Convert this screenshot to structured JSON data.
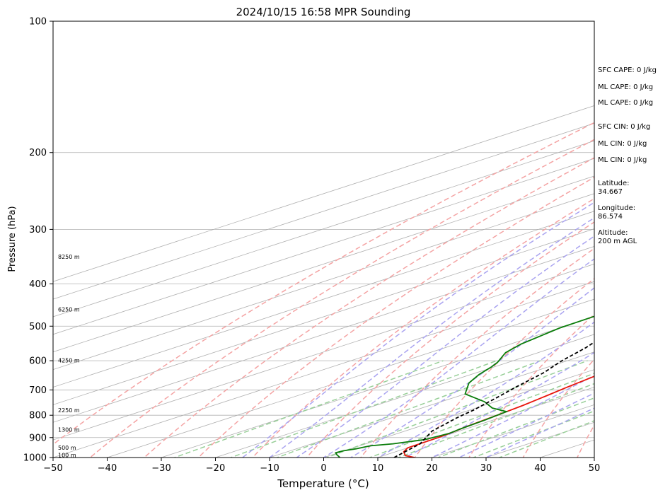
{
  "chart_data": {
    "type": "line",
    "subtype": "skew-t log-p",
    "title": "2024/10/15 16:58 MPR Sounding",
    "xlabel": "Temperature (°C)",
    "ylabel": "Pressure (hPa)",
    "xlim": [
      -50,
      50
    ],
    "ylim": [
      1000,
      100
    ],
    "y_scale": "log",
    "x_ticks": [
      -50,
      -40,
      -30,
      -20,
      -10,
      0,
      10,
      20,
      30,
      40,
      50
    ],
    "y_ticks": [
      100,
      200,
      300,
      400,
      500,
      600,
      700,
      800,
      900,
      1000
    ],
    "grid": "horizontal at pressure ticks",
    "skew_isotherms_degC": [
      -150,
      -140,
      -130,
      -120,
      -110,
      -100,
      -90,
      -80,
      -70,
      -60,
      -50,
      -40,
      -30,
      -20,
      -10,
      0,
      10,
      20,
      30,
      40,
      50
    ],
    "dry_adiabats_theta_K": [
      220,
      230,
      240,
      250,
      260,
      270,
      280,
      290,
      300,
      310,
      320,
      330,
      340,
      350,
      360,
      370,
      380,
      390,
      400,
      410,
      420,
      430,
      440,
      450
    ],
    "moist_adiabats_start_degC": [
      -15,
      -10,
      -5,
      0,
      5,
      10,
      15,
      20,
      25,
      30
    ],
    "mixing_ratio_lines_gkg": [
      0.4,
      1,
      2,
      4,
      7,
      10,
      16,
      24,
      32
    ],
    "series": [
      {
        "name": "",
        "role": "temperature",
        "color": "#e8160c",
        "points": [
          [
            16.8,
            1000
          ],
          [
            14,
            990
          ],
          [
            11.5,
            970
          ],
          [
            10,
            950
          ],
          [
            9.8,
            900
          ],
          [
            9.3,
            870
          ],
          [
            8.8,
            850
          ],
          [
            8,
            800
          ],
          [
            7.2,
            760
          ],
          [
            6,
            720
          ],
          [
            5,
            690
          ],
          [
            3.8,
            650
          ],
          [
            2,
            600
          ],
          [
            0,
            560
          ],
          [
            -1.2,
            530
          ],
          [
            -3,
            500
          ],
          [
            -6.5,
            450
          ],
          [
            -8.5,
            425
          ],
          [
            -11,
            390
          ],
          [
            -14,
            360
          ],
          [
            -17,
            330
          ],
          [
            -19,
            310
          ],
          [
            -21,
            285
          ],
          [
            -22.5,
            270
          ]
        ]
      },
      {
        "name": "",
        "role": "dewpoint",
        "color": "#0a7d0a",
        "points": [
          [
            3,
            1000
          ],
          [
            0.8,
            985
          ],
          [
            -0.5,
            975
          ],
          [
            -0.2,
            965
          ],
          [
            1,
            955
          ],
          [
            2,
            940
          ],
          [
            5,
            930
          ],
          [
            8.5,
            910
          ],
          [
            9.5,
            880
          ],
          [
            9,
            860
          ],
          [
            8.5,
            820
          ],
          [
            7.7,
            785
          ],
          [
            3,
            770
          ],
          [
            -2,
            745
          ],
          [
            -10,
            715
          ],
          [
            -15.5,
            675
          ],
          [
            -17,
            660
          ],
          [
            -18.5,
            645
          ],
          [
            -20.5,
            620
          ],
          [
            -22,
            605
          ],
          [
            -26,
            575
          ],
          [
            -28,
            550
          ],
          [
            -30,
            505
          ],
          [
            -30.2,
            480
          ],
          [
            -30.5,
            455
          ],
          [
            -31,
            440
          ],
          [
            -32,
            430
          ],
          [
            -32,
            415
          ],
          [
            -31.2,
            405
          ],
          [
            -33,
            395
          ],
          [
            -33.3,
            385
          ],
          [
            -33.6,
            370
          ],
          [
            -34,
            360
          ],
          [
            -36,
            350
          ],
          [
            -37.2,
            335
          ],
          [
            -38.5,
            325
          ],
          [
            -39.5,
            310
          ],
          [
            -40.5,
            300
          ],
          [
            -45,
            295
          ],
          [
            -50,
            290
          ]
        ]
      },
      {
        "name": "",
        "role": "parcel",
        "color": "#000000",
        "points": [
          [
            13,
            1000
          ],
          [
            10,
            930
          ],
          [
            5,
            870
          ],
          [
            2,
            810
          ],
          [
            0.8,
            780
          ],
          [
            -2,
            730
          ],
          [
            -4.5,
            690
          ],
          [
            -7.5,
            640
          ],
          [
            -11,
            600
          ],
          [
            -14,
            560
          ],
          [
            -18,
            520
          ],
          [
            -21,
            490
          ],
          [
            -27,
            445
          ],
          [
            -33,
            400
          ],
          [
            -39,
            360
          ],
          [
            -45,
            322
          ],
          [
            -51,
            290
          ],
          [
            -54,
            270
          ]
        ]
      }
    ],
    "height_labels": [
      {
        "text": "100 m",
        "p": 988
      },
      {
        "text": "500 m",
        "p": 950
      },
      {
        "text": "1300 m",
        "p": 865
      },
      {
        "text": "2250 m",
        "p": 780
      },
      {
        "text": "4250 m",
        "p": 600
      },
      {
        "text": "6250 m",
        "p": 458
      },
      {
        "text": "8250 m",
        "p": 347
      }
    ]
  },
  "info_panel": [
    "SFC CAPE: 0 J/kg",
    "ML CAPE: 0 J/kg",
    "ML CAPE: 0 J/kg",
    "SFC CIN: 0 J/kg",
    "ML CIN: 0 J/kg",
    "ML CIN: 0 J/kg",
    "Latitude:",
    "34.667",
    "Longitude:",
    "86.574",
    "Altitude:",
    "200 m AGL"
  ],
  "colors": {
    "isotherm": "#b0b0b0",
    "dry_adiabat": "#f4a3a3",
    "moist_adiabat": "#a9a3f0",
    "mixing_ratio": "#98cf98",
    "grid": "#b0b0b0"
  }
}
